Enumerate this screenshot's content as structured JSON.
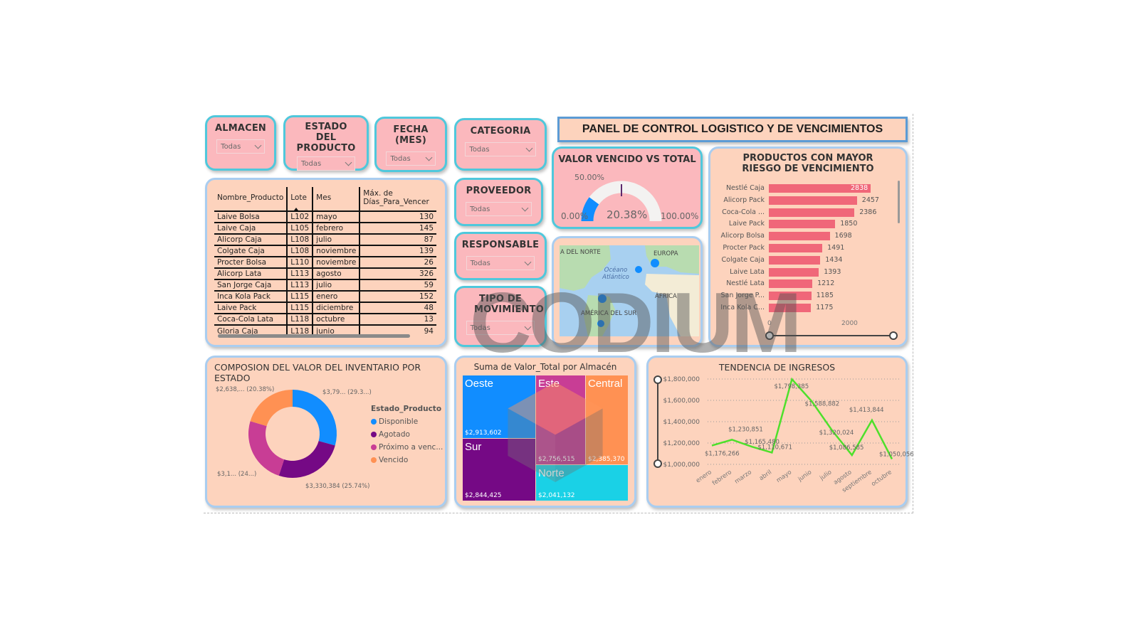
{
  "header": {
    "title": "PANEL DE CONTROL LOGISTICO Y DE VENCIMIENTOS"
  },
  "slicers": {
    "almacen": {
      "title": "ALMACEN",
      "value": "Todas"
    },
    "estado": {
      "title": "ESTADO DEL PRODUCTO",
      "value": "Todas"
    },
    "fecha": {
      "title": "FECHA (MES)",
      "value": "Todas"
    },
    "categoria": {
      "title": "CATEGORIA",
      "value": "Todas"
    },
    "proveedor": {
      "title": "PROVEEDOR",
      "value": "Todas"
    },
    "responsable": {
      "title": "RESPONSABLE",
      "value": "Todas"
    },
    "tipo_movimiento": {
      "title": "TIPO DE MOVIMIENTO",
      "value": "Todas"
    }
  },
  "table": {
    "columns": [
      "Nombre_Producto",
      "Lote",
      "Mes",
      "Máx. de Días_Para_Vencer"
    ],
    "rows": [
      [
        "Laive Bolsa",
        "L102",
        "mayo",
        "130"
      ],
      [
        "Laive Caja",
        "L105",
        "febrero",
        "145"
      ],
      [
        "Alicorp Caja",
        "L108",
        "julio",
        "87"
      ],
      [
        "Colgate Caja",
        "L108",
        "noviembre",
        "139"
      ],
      [
        "Procter Bolsa",
        "L110",
        "noviembre",
        "26"
      ],
      [
        "Alicorp Lata",
        "L113",
        "agosto",
        "326"
      ],
      [
        "San Jorge Caja",
        "L113",
        "julio",
        "59"
      ],
      [
        "Inca Kola Pack",
        "L115",
        "enero",
        "152"
      ],
      [
        "Laive Pack",
        "L115",
        "diciembre",
        "48"
      ],
      [
        "Coca-Cola Lata",
        "L118",
        "octubre",
        "13"
      ],
      [
        "Gloria Caja",
        "L118",
        "junio",
        "94"
      ]
    ]
  },
  "gauge": {
    "title": "VALOR VENCIDO VS TOTAL",
    "value_label": "20.38%",
    "min_label": "0.00%",
    "max_label": "100.00%",
    "target_label": "50.00%",
    "value": 20.38,
    "color": "#118dff"
  },
  "map": {
    "labels": {
      "north_america": "A DEL NORTE",
      "europe": "EUROPA",
      "ocean": "Océano Atlántico",
      "africa": "ÁFRICA",
      "south_america": "AMÉRICA DEL SUR"
    }
  },
  "risk_chart": {
    "title": "PRODUCTOS CON MAYOR RIESGO DE VENCIMIENTO",
    "axis_ticks": [
      "0",
      "2000"
    ]
  },
  "donut": {
    "title": "COMPOSION DEL VALOR DEL INVENTARIO POR ESTADO",
    "legend_title": "Estado_Producto",
    "legend": [
      "Disponible",
      "Agotado",
      "Próximo a venc...",
      "Vencido"
    ],
    "labels": [
      "$3,79... (29.3...)",
      "$3,330,384 (25.74%)",
      "$3,1... (24...)",
      "$2,638,... (20.38%)"
    ]
  },
  "treemap": {
    "title": "Suma de Valor_Total por Almacén",
    "items": [
      {
        "name": "Oeste",
        "value": "$2,913,602"
      },
      {
        "name": "Sur",
        "value": "$2,844,425"
      },
      {
        "name": "Este",
        "value": "$2,756,515"
      },
      {
        "name": "Central",
        "value": "$2,385,370"
      },
      {
        "name": "Norte",
        "value": "$2,041,132"
      }
    ]
  },
  "trend": {
    "title": "TENDENCIA DE INGRESOS",
    "y_ticks": [
      "$1,800,000",
      "$1,600,000",
      "$1,400,000",
      "$1,200,000",
      "$1,000,000"
    ],
    "months": [
      "enero",
      "febrero",
      "marzo",
      "abril",
      "mayo",
      "junio",
      "julio",
      "agosto",
      "septiembre",
      "octubre"
    ],
    "point_labels": [
      "$1,176,266",
      "$1,230,851",
      "$1,165,480",
      "$1,110,671",
      "$1,798,385",
      "$1,588,882",
      "$1,320,024",
      "$1,086,585",
      "$1,413,844",
      "$1,050,056"
    ]
  },
  "watermark": {
    "text": "CODIUM"
  },
  "chart_data": [
    {
      "type": "gauge",
      "title": "VALOR VENCIDO VS TOTAL",
      "value": 20.38,
      "min": 0,
      "max": 100,
      "target": 50
    },
    {
      "type": "bar",
      "orientation": "horizontal",
      "title": "PRODUCTOS CON MAYOR RIESGO DE VENCIMIENTO",
      "categories": [
        "Nestlé Caja",
        "Alicorp Pack",
        "Coca-Cola ...",
        "Laive Pack",
        "Alicorp Bolsa",
        "Procter Pack",
        "Colgate Caja",
        "Laive Lata",
        "Nestlé Lata",
        "San Jorge P...",
        "Inca Kola C..."
      ],
      "values": [
        2838,
        2457,
        2386,
        1850,
        1698,
        1491,
        1434,
        1393,
        1212,
        1185,
        1175
      ],
      "xlim": [
        0,
        3000
      ],
      "color": "#f06779"
    },
    {
      "type": "pie",
      "donut": true,
      "title": "COMPOSION DEL VALOR DEL INVENTARIO POR ESTADO",
      "categories": [
        "Disponible",
        "Agotado",
        "Próximo a vencer",
        "Vencido"
      ],
      "values": [
        29.3,
        25.74,
        24.58,
        20.38
      ],
      "colors": [
        "#118dff",
        "#750985",
        "#c83d95",
        "#ff9153"
      ],
      "legend_title": "Estado_Producto",
      "legend_position": "right"
    },
    {
      "type": "treemap",
      "title": "Suma de Valor_Total por Almacén",
      "categories": [
        "Oeste",
        "Sur",
        "Este",
        "Central",
        "Norte"
      ],
      "values": [
        2913602,
        2844425,
        2756515,
        2385370,
        2041132
      ],
      "colors": [
        "#118dff",
        "#750985",
        "#c83d95",
        "#ff9153",
        "#1ad1e6"
      ]
    },
    {
      "type": "line",
      "title": "TENDENCIA DE INGRESOS",
      "x": [
        "enero",
        "febrero",
        "marzo",
        "abril",
        "mayo",
        "junio",
        "julio",
        "agosto",
        "septiembre",
        "octubre"
      ],
      "values": [
        1176266,
        1230851,
        1165480,
        1110671,
        1798385,
        1588882,
        1320024,
        1086585,
        1413844,
        1050056
      ],
      "ylim": [
        1000000,
        1800000
      ],
      "grid": true,
      "color": "#4ee02b"
    }
  ]
}
